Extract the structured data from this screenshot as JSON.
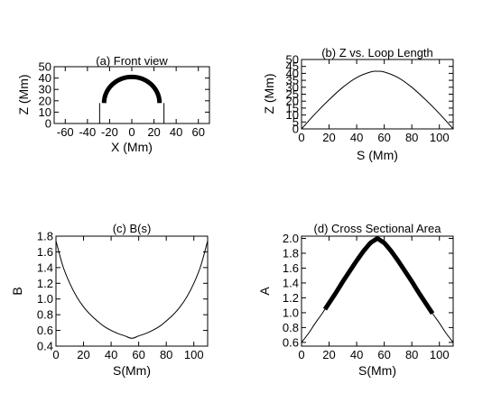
{
  "chart_data": [
    {
      "id": "a",
      "type": "line",
      "title": "(a) Front view",
      "xlabel": "X (Mm)",
      "ylabel": "Z (Mm)",
      "xlim": [
        -70,
        70
      ],
      "ylim": [
        0,
        50
      ],
      "xticks": [
        -60,
        -40,
        -20,
        0,
        20,
        40,
        60
      ],
      "yticks": [
        0,
        10,
        20,
        30,
        40,
        50
      ],
      "loop": {
        "foot_left_x": -25,
        "foot_right_x": 25,
        "foot_z": 18,
        "apex_z": 41
      },
      "legs": {
        "left_x": -29,
        "right_x": 29,
        "z_top": 18
      }
    },
    {
      "id": "b",
      "type": "line",
      "title": "(b) Z vs. Loop Length",
      "xlabel": "S (Mm)",
      "ylabel": "Z (Mm)",
      "xlim": [
        0,
        110
      ],
      "ylim": [
        0,
        50
      ],
      "xticks": [
        0,
        20,
        40,
        60,
        80,
        100
      ],
      "yticks": [
        0,
        5,
        10,
        15,
        20,
        25,
        30,
        35,
        40,
        45,
        50
      ],
      "series": [
        {
          "x": [
            0,
            10,
            20,
            30,
            40,
            50,
            55,
            60,
            70,
            80,
            90,
            100,
            110
          ],
          "y": [
            0,
            11,
            21,
            30,
            37,
            41,
            41.5,
            41,
            37,
            30,
            21,
            11,
            0
          ]
        }
      ]
    },
    {
      "id": "c",
      "type": "line",
      "title": "(c) B(s)",
      "xlabel": "S(Mm)",
      "ylabel": "B",
      "xlim": [
        0,
        110
      ],
      "ylim": [
        0.4,
        1.8
      ],
      "xticks": [
        0,
        20,
        40,
        60,
        80,
        100
      ],
      "yticks": [
        0.4,
        0.6,
        0.8,
        1.0,
        1.2,
        1.4,
        1.6,
        1.8
      ],
      "series": [
        {
          "x": [
            0,
            5,
            10,
            15,
            20,
            25,
            30,
            35,
            40,
            45,
            50,
            55,
            60,
            65,
            70,
            75,
            80,
            85,
            90,
            95,
            100,
            105,
            110
          ],
          "y": [
            1.74,
            1.42,
            1.2,
            1.03,
            0.9,
            0.8,
            0.72,
            0.65,
            0.6,
            0.56,
            0.53,
            0.5,
            0.53,
            0.56,
            0.6,
            0.65,
            0.72,
            0.8,
            0.9,
            1.03,
            1.2,
            1.42,
            1.74
          ]
        }
      ]
    },
    {
      "id": "d",
      "type": "line",
      "title": "(d) Cross Sectional Area",
      "xlabel": "S(Mm)",
      "ylabel": "A",
      "xlim": [
        0,
        110
      ],
      "ylim": [
        0.55,
        2.03
      ],
      "xticks": [
        0,
        20,
        40,
        60,
        80,
        100
      ],
      "yticks": [
        0.6,
        0.8,
        1.0,
        1.2,
        1.4,
        1.6,
        1.8,
        2.0
      ],
      "series": [
        {
          "x": [
            0,
            5,
            10,
            15,
            20,
            25,
            30,
            35,
            40,
            45,
            50,
            55,
            60,
            65,
            70,
            75,
            80,
            85,
            90,
            95,
            100,
            105,
            110
          ],
          "y": [
            0.6,
            0.72,
            0.86,
            0.99,
            1.13,
            1.27,
            1.42,
            1.56,
            1.7,
            1.83,
            1.94,
            2.0,
            1.94,
            1.83,
            1.7,
            1.56,
            1.42,
            1.27,
            1.13,
            0.99,
            0.86,
            0.72,
            0.6
          ]
        }
      ],
      "thick_range": [
        17,
        95
      ]
    }
  ]
}
